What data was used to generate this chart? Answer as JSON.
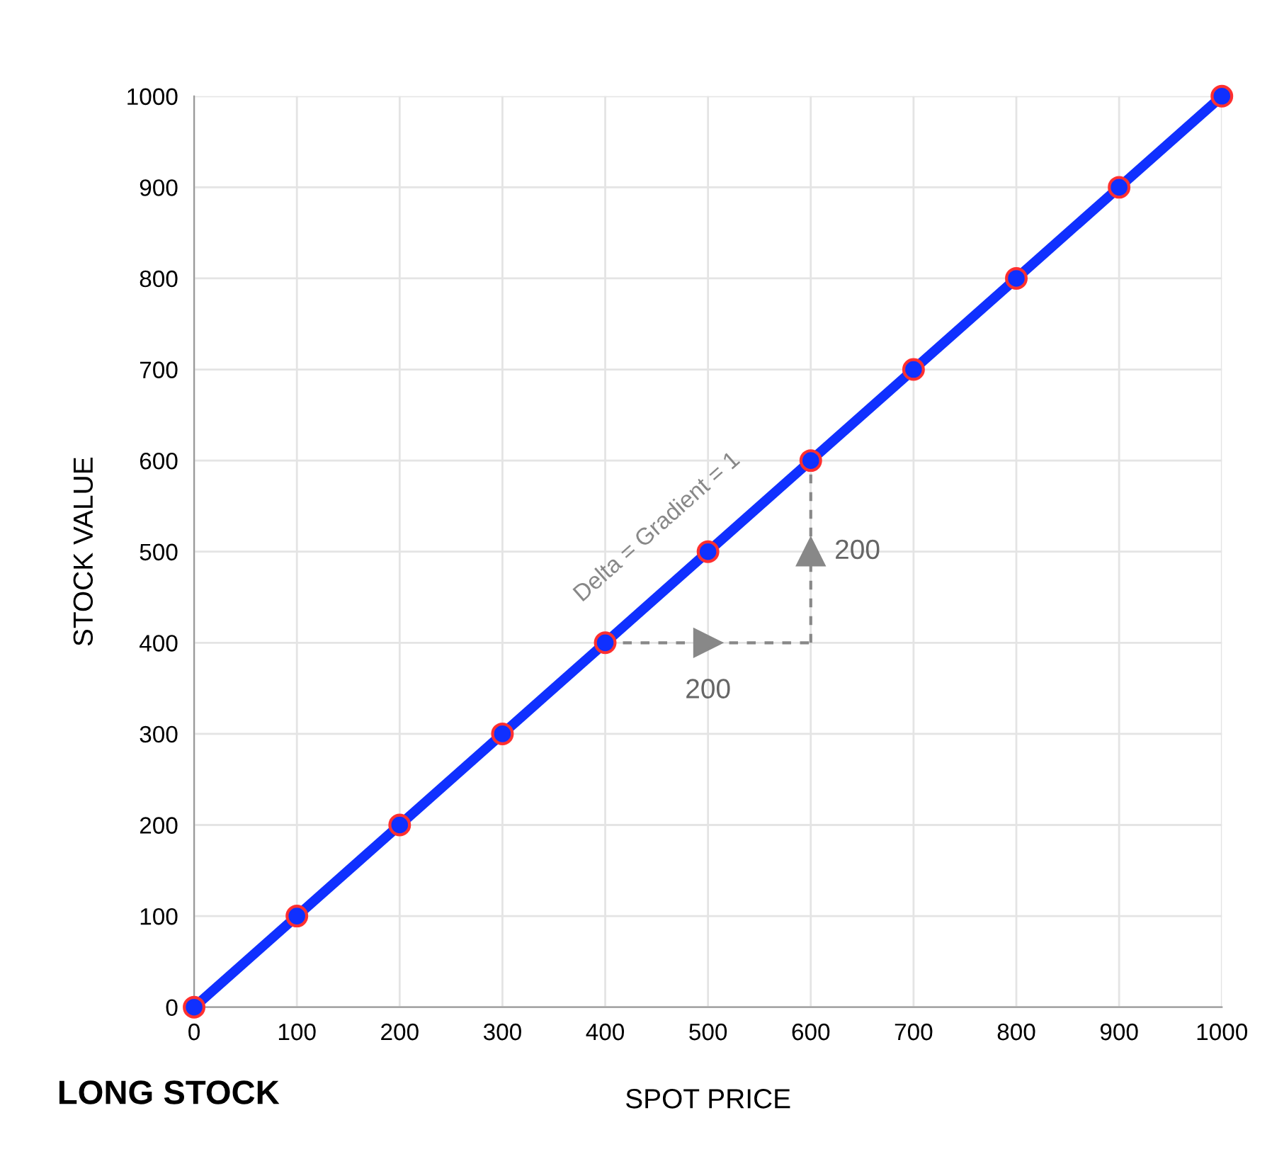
{
  "chart_data": {
    "type": "line",
    "title": "LONG STOCK",
    "xlabel": "SPOT PRICE",
    "ylabel": "STOCK VALUE",
    "x": [
      0,
      100,
      200,
      300,
      400,
      500,
      600,
      700,
      800,
      900,
      1000
    ],
    "series": [
      {
        "color": "#1030ff",
        "values": [
          0,
          100,
          200,
          300,
          400,
          500,
          600,
          700,
          800,
          900,
          1000
        ]
      }
    ],
    "xlim": [
      0,
      1000
    ],
    "ylim": [
      0,
      1000
    ],
    "xticks": [
      0,
      100,
      200,
      300,
      400,
      500,
      600,
      700,
      800,
      900,
      1000
    ],
    "yticks": [
      0,
      100,
      200,
      300,
      400,
      500,
      600,
      700,
      800,
      900,
      1000
    ],
    "grid": true,
    "marker": "circle",
    "line_style": "solid",
    "annotations": [
      "Delta = Gradient = 1",
      {
        "text": "200",
        "x": 500,
        "y": 400
      },
      {
        "text": "200",
        "x": 600,
        "y": 500
      }
    ]
  }
}
